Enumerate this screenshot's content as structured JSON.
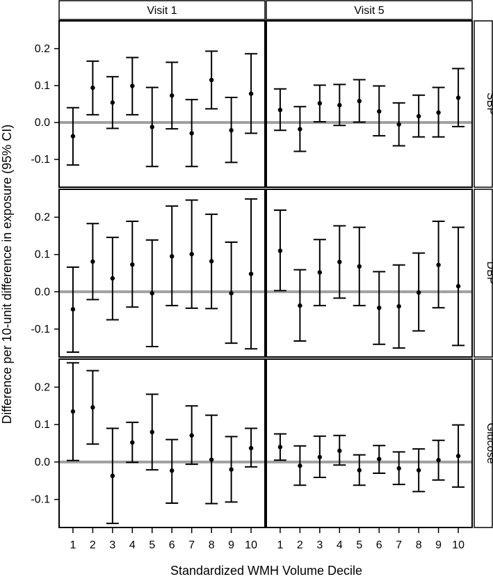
{
  "chart_data": {
    "type": "scatter",
    "subtype": "point-estimate with 95% CI error bars, faceted grid",
    "xlabel": "Standardized WMH Volume Decile",
    "ylabel": "Difference per 10-unit difference in exposure (95% CI)",
    "columns": [
      "Visit 1",
      "Visit 5"
    ],
    "rows": [
      "SBP",
      "DBP",
      "Glucose"
    ],
    "x_ticks": [
      "1",
      "2",
      "3",
      "4",
      "5",
      "6",
      "7",
      "8",
      "9",
      "10"
    ],
    "y_ticks": [
      "-0.1",
      "0.0",
      "0.1",
      "0.2"
    ],
    "ylim": [
      -0.175,
      0.275
    ],
    "xlim": [
      0.3,
      10.7
    ],
    "reference_line": {
      "y": 0,
      "color": "#a0a0a0"
    },
    "panels": [
      {
        "row": "SBP",
        "col": "Visit 1",
        "estimate": [
          -0.037,
          0.094,
          0.054,
          0.099,
          -0.012,
          0.073,
          -0.029,
          0.115,
          -0.021,
          0.078
        ],
        "lower": [
          -0.115,
          0.021,
          -0.016,
          0.021,
          -0.119,
          -0.017,
          -0.119,
          0.037,
          -0.108,
          -0.029
        ],
        "upper": [
          0.04,
          0.166,
          0.124,
          0.176,
          0.095,
          0.163,
          0.062,
          0.193,
          0.068,
          0.186
        ]
      },
      {
        "row": "SBP",
        "col": "Visit 5",
        "estimate": [
          0.034,
          -0.018,
          0.052,
          0.047,
          0.058,
          0.03,
          -0.005,
          0.017,
          0.027,
          0.067
        ],
        "lower": [
          -0.021,
          -0.078,
          0.002,
          -0.008,
          0.001,
          -0.036,
          -0.063,
          -0.039,
          -0.039,
          -0.011
        ],
        "upper": [
          0.091,
          0.043,
          0.101,
          0.103,
          0.116,
          0.099,
          0.053,
          0.074,
          0.095,
          0.146
        ]
      },
      {
        "row": "DBP",
        "col": "Visit 1",
        "estimate": [
          -0.047,
          0.081,
          0.036,
          0.073,
          -0.004,
          0.095,
          0.101,
          0.082,
          -0.004,
          0.048
        ],
        "lower": [
          -0.162,
          -0.021,
          -0.075,
          -0.041,
          -0.147,
          -0.037,
          -0.044,
          -0.045,
          -0.138,
          -0.153
        ],
        "upper": [
          0.066,
          0.183,
          0.146,
          0.189,
          0.139,
          0.23,
          0.246,
          0.208,
          0.133,
          0.249
        ]
      },
      {
        "row": "DBP",
        "col": "Visit 5",
        "estimate": [
          0.11,
          -0.037,
          0.052,
          0.08,
          0.068,
          -0.043,
          -0.039,
          -0.002,
          0.072,
          0.015
        ],
        "lower": [
          0.003,
          -0.132,
          -0.037,
          -0.017,
          -0.037,
          -0.141,
          -0.151,
          -0.105,
          -0.043,
          -0.144
        ],
        "upper": [
          0.219,
          0.059,
          0.14,
          0.177,
          0.173,
          0.054,
          0.072,
          0.104,
          0.189,
          0.173
        ]
      },
      {
        "row": "Glucose",
        "col": "Visit 1",
        "estimate": [
          0.135,
          0.146,
          -0.037,
          0.052,
          0.08,
          -0.023,
          0.071,
          0.006,
          -0.02,
          0.037
        ],
        "lower": [
          0.004,
          0.048,
          -0.164,
          -0.001,
          -0.021,
          -0.11,
          -0.006,
          -0.111,
          -0.107,
          -0.013
        ],
        "upper": [
          0.265,
          0.244,
          0.09,
          0.106,
          0.181,
          0.06,
          0.15,
          0.125,
          0.068,
          0.09
        ]
      },
      {
        "row": "Glucose",
        "col": "Visit 5",
        "estimate": [
          0.04,
          -0.01,
          0.013,
          0.03,
          -0.022,
          0.008,
          -0.017,
          -0.022,
          0.005,
          0.016
        ],
        "lower": [
          0.005,
          -0.062,
          -0.041,
          -0.008,
          -0.062,
          -0.03,
          -0.06,
          -0.079,
          -0.048,
          -0.067
        ],
        "upper": [
          0.075,
          0.043,
          0.069,
          0.071,
          0.019,
          0.044,
          0.027,
          0.035,
          0.058,
          0.099
        ]
      }
    ]
  }
}
